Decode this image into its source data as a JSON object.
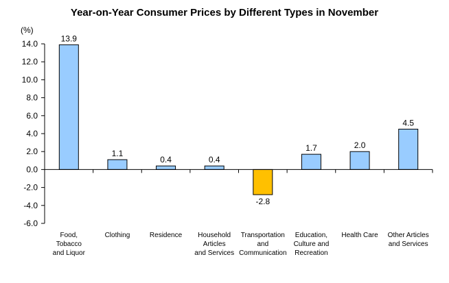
{
  "chart_data": {
    "type": "bar",
    "title": "Year-on-Year Consumer Prices by Different  Types in November",
    "unit": "(%)",
    "ylim": [
      -6.0,
      14.0
    ],
    "yticks": [
      "14.0",
      "12.0",
      "10.0",
      "8.0",
      "6.0",
      "4.0",
      "2.0",
      "0.0",
      "-2.0",
      "-4.0",
      "-6.0"
    ],
    "ytick_values": [
      14,
      12,
      10,
      8,
      6,
      4,
      2,
      0,
      -2,
      -4,
      -6
    ],
    "categories": [
      [
        "Food,",
        "Tobacco",
        "and Liquor"
      ],
      [
        "Clothing"
      ],
      [
        "Residence"
      ],
      [
        "Household",
        "Articles",
        "and Services"
      ],
      [
        "Transportation",
        "and",
        "Communication"
      ],
      [
        "Education,",
        "Culture and",
        "Recreation"
      ],
      [
        "Health Care"
      ],
      [
        "Other Articles",
        "and Services"
      ]
    ],
    "values": [
      13.9,
      1.1,
      0.4,
      0.4,
      -2.8,
      1.7,
      2.0,
      4.5
    ],
    "value_labels": [
      "13.9",
      "1.1",
      "0.4",
      "0.4",
      "-2.8",
      "1.7",
      "2.0",
      "4.5"
    ],
    "colors": {
      "positive": "#99CCFF",
      "negative": "#FFC000",
      "bar_stroke": "#000000",
      "axis": "#000000"
    },
    "grid": false,
    "legend": "none"
  }
}
